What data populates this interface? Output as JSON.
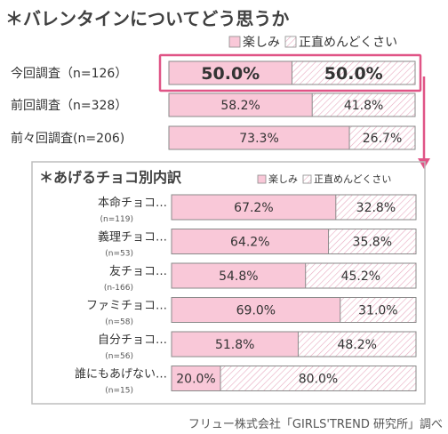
{
  "title": "＊バレンタインについてどう思うか",
  "source": "フリュー株式会社「GIRLS'TREND 研究所」調べ",
  "colors": {
    "enjoy": "#f9c8d8",
    "hassle_bg": "#ffffff",
    "hatch": "#e8a9bf",
    "border": "#8a8a8a",
    "highlight": "#e05486",
    "arrow": "#e05486"
  },
  "chart_data": [
    {
      "type": "bar",
      "stacked": true,
      "orientation": "horizontal",
      "legend": {
        "position": "top-right",
        "entries": [
          "楽しみ",
          "正直めんどくさい"
        ]
      },
      "categories": [
        "今回調査（n=126）",
        "前回調査（n=328）",
        "前々回調査(n=206)"
      ],
      "series": [
        {
          "name": "楽しみ",
          "values": [
            50.0,
            58.2,
            73.3
          ]
        },
        {
          "name": "正直めんどくさい",
          "values": [
            50.0,
            41.8,
            26.7
          ]
        }
      ],
      "labels": [
        [
          "50.0%",
          "50.0%"
        ],
        [
          "58.2%",
          "41.8%"
        ],
        [
          "73.3%",
          "26.7%"
        ]
      ],
      "xlim": [
        0,
        100
      ]
    },
    {
      "type": "bar",
      "stacked": true,
      "orientation": "horizontal",
      "title": "＊あげるチョコ別内訳",
      "legend": {
        "position": "top-right",
        "entries": [
          "楽しみ",
          "正直めんどくさい"
        ]
      },
      "categories": [
        "本命チョコ…",
        "義理チョコ…",
        "友チョコ…",
        "ファミチョコ…",
        "自分チョコ…",
        "誰にもあげない…"
      ],
      "subcategories": [
        "(n=119)",
        "(n=53)",
        "(n-166)",
        "(n=58)",
        "(n=56)",
        "(n=15)"
      ],
      "series": [
        {
          "name": "楽しみ",
          "values": [
            67.2,
            64.2,
            54.8,
            69.0,
            51.8,
            20.0
          ]
        },
        {
          "name": "正直めんどくさい",
          "values": [
            32.8,
            35.8,
            45.2,
            31.0,
            48.2,
            80.0
          ]
        }
      ],
      "labels": [
        [
          "67.2%",
          "32.8%"
        ],
        [
          "64.2%",
          "35.8%"
        ],
        [
          "54.8%",
          "45.2%"
        ],
        [
          "69.0%",
          "31.0%"
        ],
        [
          "51.8%",
          "48.2%"
        ],
        [
          "20.0%",
          "80.0%"
        ]
      ],
      "xlim": [
        0,
        100
      ]
    }
  ]
}
